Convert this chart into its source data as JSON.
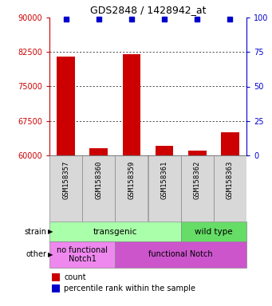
{
  "title": "GDS2848 / 1428942_at",
  "samples": [
    "GSM158357",
    "GSM158360",
    "GSM158359",
    "GSM158361",
    "GSM158362",
    "GSM158363"
  ],
  "counts": [
    81500,
    61500,
    82000,
    62000,
    61000,
    65000
  ],
  "percentiles": [
    99,
    99,
    99,
    99,
    99,
    99
  ],
  "ylim_left": [
    60000,
    90000
  ],
  "yticks_left": [
    60000,
    67500,
    75000,
    82500,
    90000
  ],
  "ylim_right": [
    0,
    100
  ],
  "yticks_right": [
    0,
    25,
    50,
    75,
    100
  ],
  "bar_color": "#cc0000",
  "percentile_color": "#0000cc",
  "bar_width": 0.55,
  "strain_labels": [
    {
      "label": "transgenic",
      "cols": [
        0,
        1,
        2,
        3
      ],
      "color": "#aaffaa"
    },
    {
      "label": "wild type",
      "cols": [
        4,
        5
      ],
      "color": "#66dd66"
    }
  ],
  "other_labels": [
    {
      "label": "no functional\nNotch1",
      "cols": [
        0,
        1
      ],
      "color": "#ee88ee"
    },
    {
      "label": "functional Notch",
      "cols": [
        2,
        3,
        4,
        5
      ],
      "color": "#cc55cc"
    }
  ],
  "grid_color": "#aaaaaa",
  "bg_color": "#d8d8d8",
  "left_label_color": "#cc0000",
  "right_label_color": "#0000cc",
  "fig_width": 3.41,
  "fig_height": 3.84,
  "dpi": 100
}
